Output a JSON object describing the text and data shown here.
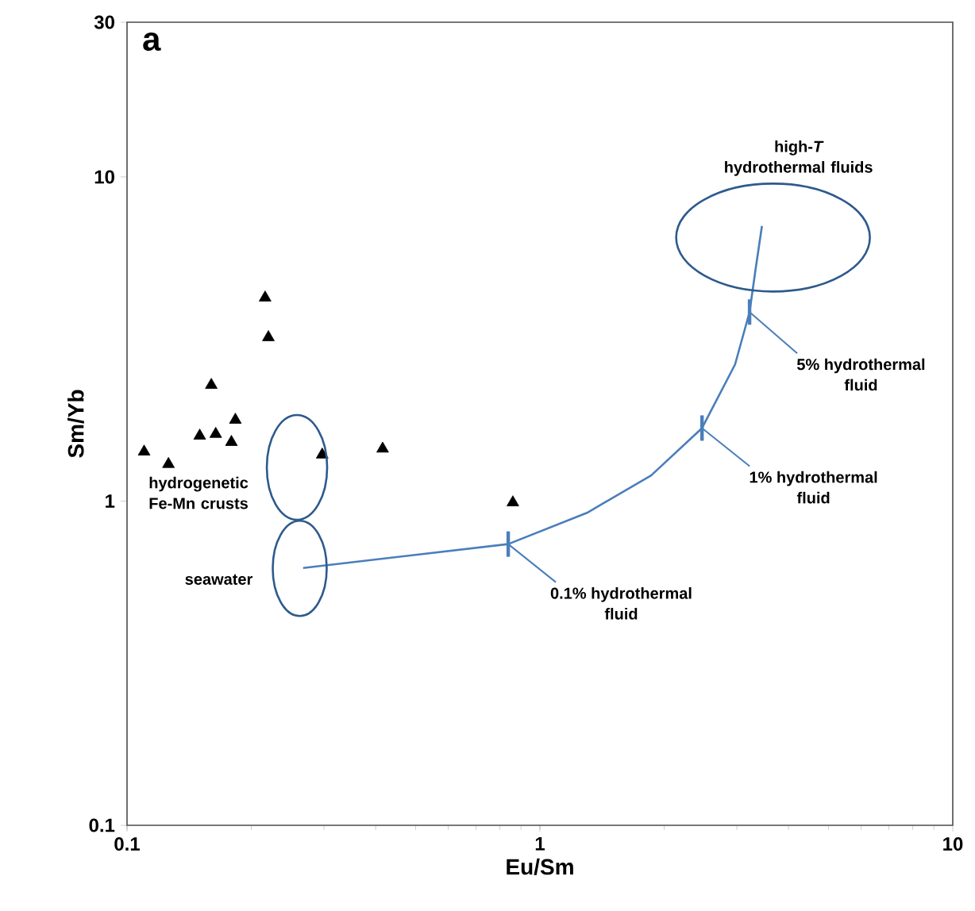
{
  "chart_data": {
    "type": "scatter",
    "xlabel": "Eu/Sm",
    "ylabel": "Sm/Yb",
    "log": "xy",
    "xlim": [
      0.1,
      10
    ],
    "ylim": [
      0.1,
      30
    ],
    "xticks": [
      0.1,
      1,
      10
    ],
    "yticks": [
      0.1,
      1,
      10,
      30
    ],
    "grid": false,
    "series": [
      {
        "marker": "triangle",
        "color": "#000000",
        "x": [
          0.11,
          0.126,
          0.15,
          0.164,
          0.179,
          0.183,
          0.16,
          0.216,
          0.22,
          0.297,
          0.416,
          0.86
        ],
        "values": [
          1.42,
          1.3,
          1.59,
          1.61,
          1.52,
          1.78,
          2.28,
          4.24,
          3.2,
          1.39,
          1.45,
          0.99
        ]
      },
      {
        "type": "line",
        "marker": "none",
        "line_style": "solid",
        "color": "#4a7ebb",
        "x": [
          0.267,
          0.838,
          1.3,
          1.86,
          2.47,
          2.97,
          3.22,
          3.33,
          3.45
        ],
        "values": [
          0.622,
          0.737,
          0.92,
          1.2,
          1.68,
          2.64,
          3.83,
          5.19,
          7.06
        ]
      }
    ],
    "annotations": [
      "a",
      "hydrogenetic Fe-Mn crusts",
      {
        "text": "seawater",
        "x": 0.262,
        "y": 0.62
      },
      "high-*T* hydrothermal fluids",
      {
        "text": "0.1% hydrothermal fluid",
        "x": 0.838,
        "y": 0.737
      },
      {
        "text": "1% hydrothermal fluid",
        "x": 2.47,
        "y": 1.68
      },
      {
        "text": "5% hydrothermal fluid",
        "x": 3.22,
        "y": 3.83
      }
    ]
  }
}
